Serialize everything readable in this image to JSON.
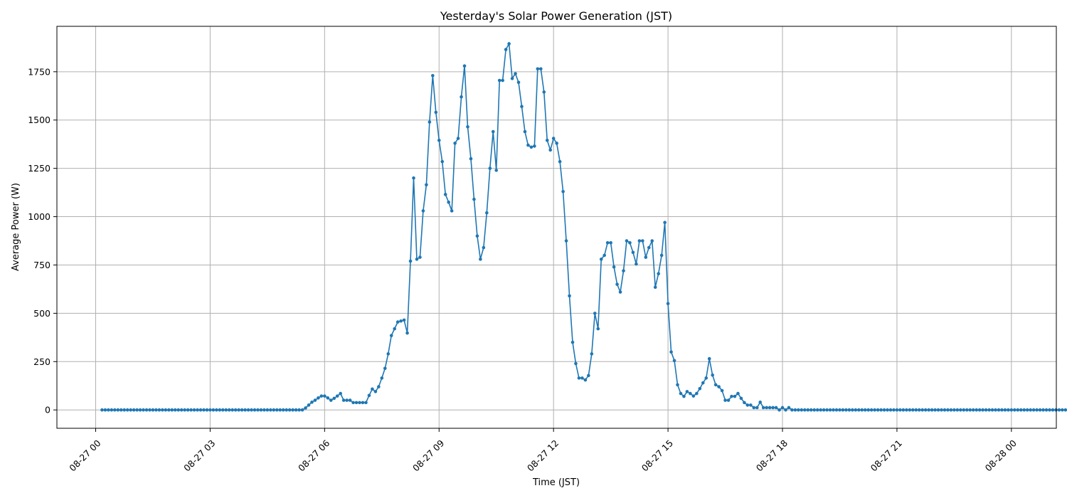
{
  "chart_data": {
    "type": "line",
    "title": "Yesterday's Solar Power Generation (JST)",
    "xlabel": "Time (JST)",
    "ylabel": "Average Power (W)",
    "color": "#1f77b4",
    "grid": true,
    "marker": "dot",
    "x_start": "08-27 00:10",
    "x_step_minutes": 5,
    "x_tick_labels": [
      "08-27 00",
      "08-27 03",
      "08-27 06",
      "08-27 09",
      "08-27 12",
      "08-27 15",
      "08-27 18",
      "08-27 21",
      "08-28 00"
    ],
    "y_ticks": [
      0,
      250,
      500,
      750,
      1000,
      1250,
      1500,
      1750
    ],
    "ylim": [
      -95,
      1985
    ],
    "series": [
      {
        "values": [
          0,
          0,
          0,
          0,
          0,
          0,
          0,
          0,
          0,
          0,
          0,
          0,
          0,
          0,
          0,
          0,
          0,
          0,
          0,
          0,
          0,
          0,
          0,
          0,
          0,
          0,
          0,
          0,
          0,
          0,
          0,
          0,
          0,
          0,
          0,
          0,
          0,
          0,
          0,
          0,
          0,
          0,
          0,
          0,
          0,
          0,
          0,
          0,
          0,
          0,
          0,
          0,
          0,
          0,
          0,
          0,
          0,
          0,
          0,
          0,
          0,
          0,
          0,
          0,
          10,
          25,
          40,
          50,
          62,
          72,
          72,
          62,
          50,
          60,
          72,
          85,
          50,
          50,
          50,
          38,
          38,
          38,
          38,
          38,
          75,
          108,
          95,
          120,
          165,
          215,
          290,
          385,
          420,
          455,
          460,
          465,
          398,
          770,
          1200,
          780,
          790,
          1030,
          1165,
          1490,
          1730,
          1540,
          1395,
          1285,
          1115,
          1075,
          1030,
          1380,
          1405,
          1620,
          1780,
          1465,
          1300,
          1090,
          900,
          780,
          840,
          1020,
          1250,
          1440,
          1240,
          1705,
          1705,
          1865,
          1895,
          1715,
          1740,
          1695,
          1570,
          1440,
          1370,
          1360,
          1365,
          1765,
          1765,
          1645,
          1395,
          1345,
          1405,
          1380,
          1285,
          1130,
          875,
          590,
          350,
          240,
          165,
          165,
          155,
          178,
          290,
          500,
          420,
          780,
          800,
          865,
          865,
          740,
          650,
          610,
          720,
          875,
          865,
          815,
          755,
          875,
          875,
          790,
          840,
          875,
          635,
          705,
          800,
          970,
          550,
          300,
          255,
          130,
          85,
          70,
          95,
          85,
          72,
          85,
          110,
          140,
          165,
          265,
          180,
          130,
          120,
          100,
          50,
          50,
          70,
          70,
          85,
          60,
          38,
          25,
          25,
          12,
          12,
          40,
          12,
          12,
          12,
          12,
          12,
          0,
          12,
          0,
          12,
          0,
          0,
          0,
          0,
          0,
          0,
          0,
          0,
          0,
          0,
          0,
          0,
          0,
          0,
          0,
          0,
          0,
          0,
          0,
          0,
          0,
          0,
          0,
          0,
          0,
          0,
          0,
          0,
          0,
          0,
          0,
          0,
          0,
          0,
          0,
          0,
          0,
          0,
          0,
          0,
          0,
          0,
          0,
          0,
          0,
          0,
          0,
          0,
          0,
          0,
          0,
          0,
          0,
          0,
          0,
          0,
          0,
          0,
          0,
          0,
          0,
          0,
          0,
          0,
          0,
          0,
          0,
          0,
          0,
          0,
          0,
          0,
          0,
          0,
          0,
          0,
          0,
          0,
          0,
          0,
          0,
          0,
          0,
          0,
          0,
          0,
          0,
          0,
          0,
          0,
          0,
          0,
          0,
          0
        ]
      }
    ]
  }
}
